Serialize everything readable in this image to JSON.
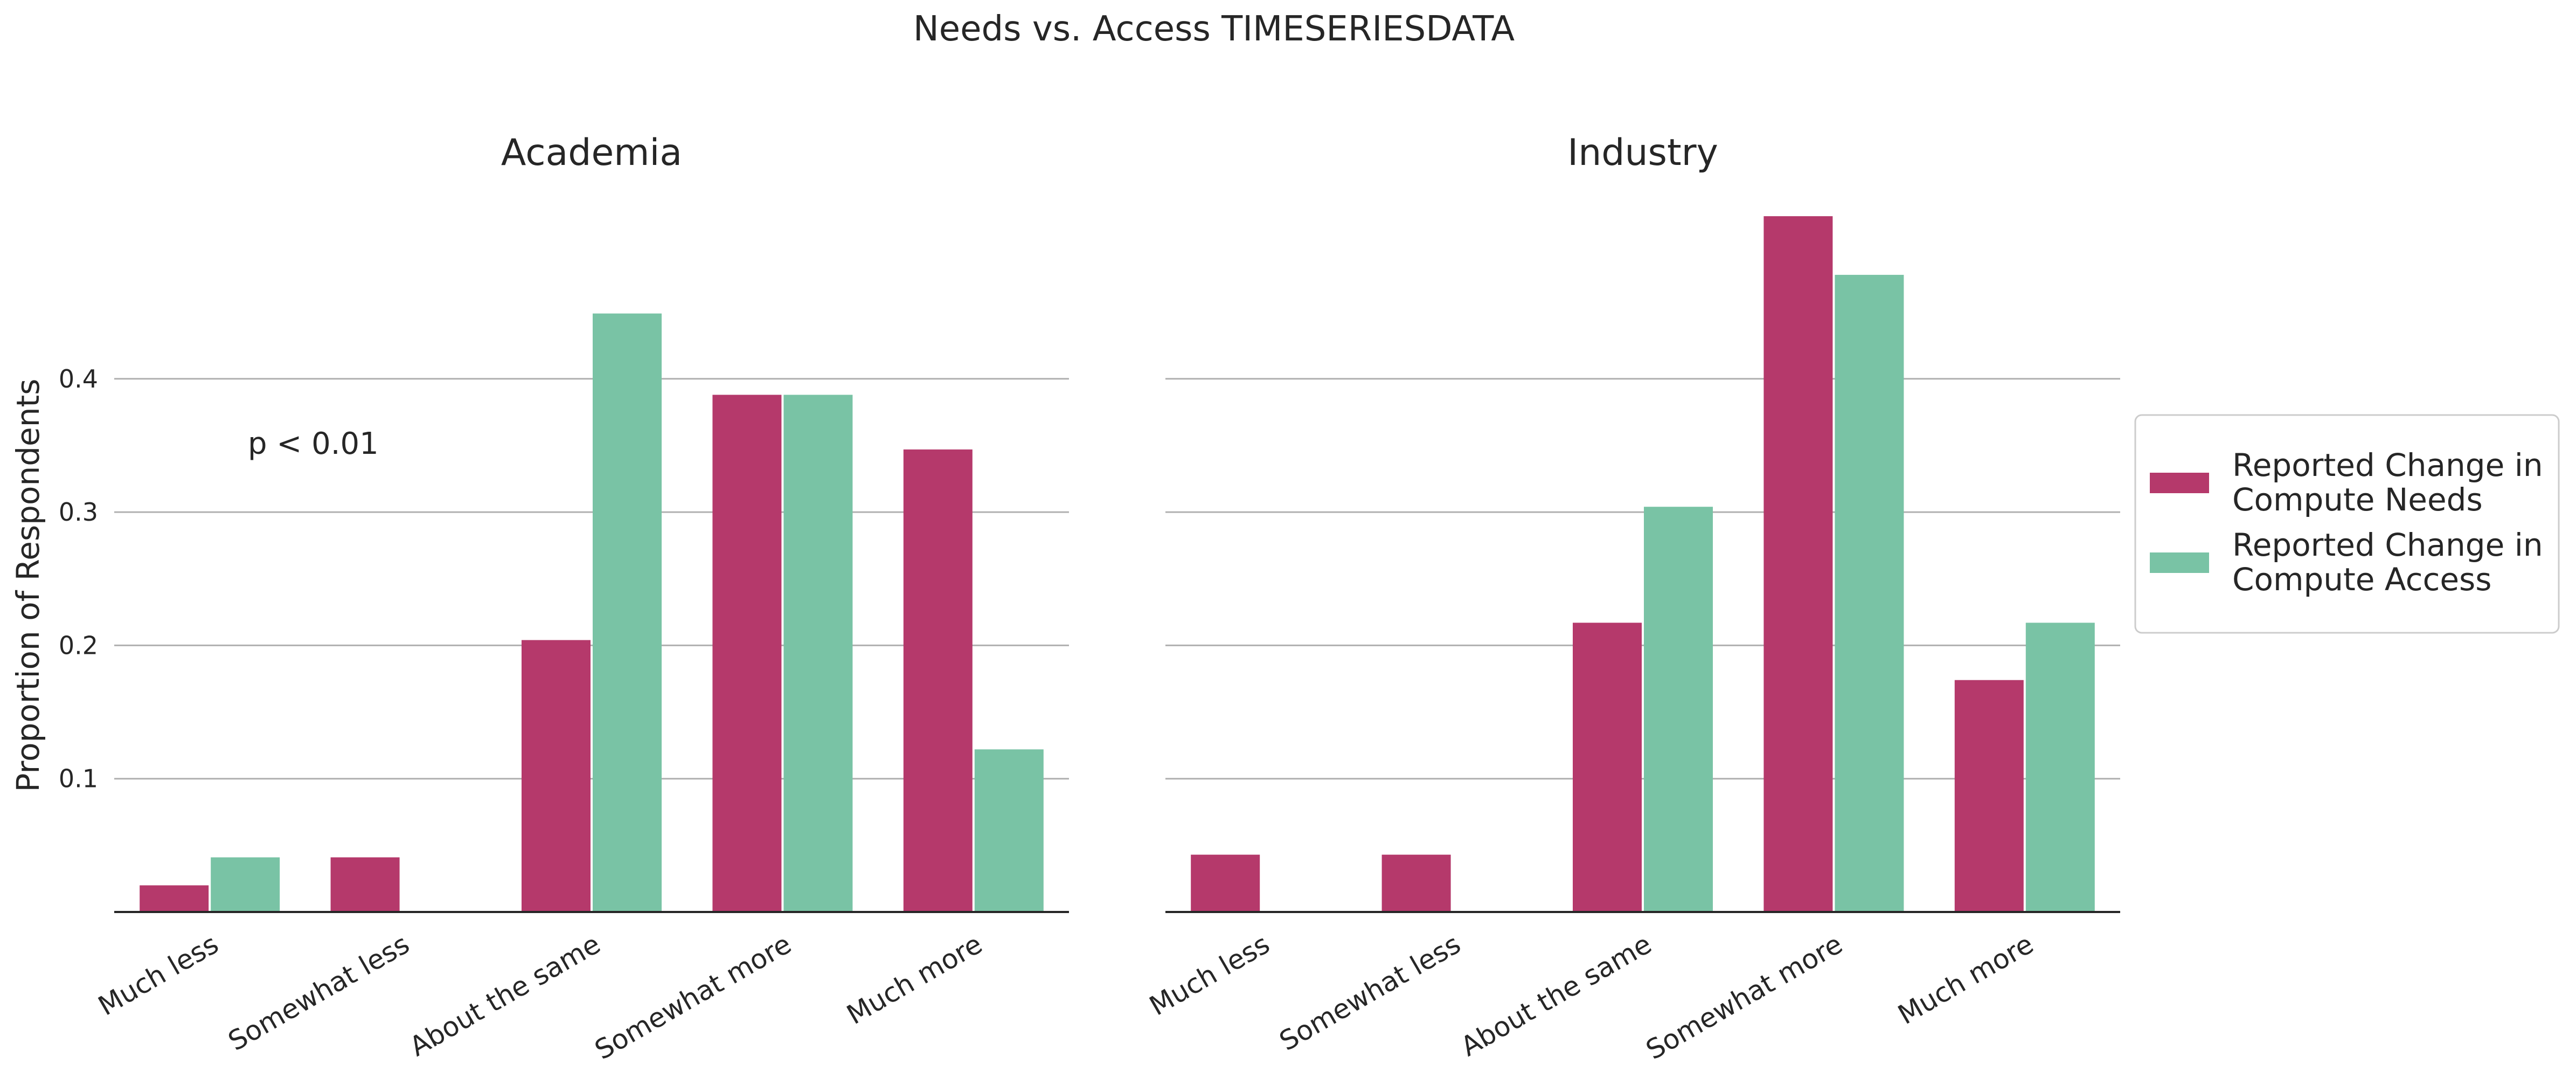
{
  "chart_data": {
    "type": "bar",
    "title": "Needs vs. Access TIMESERIESDATA",
    "ylabel": "Proportion of Respondents",
    "ylim": [
      0,
      0.52
    ],
    "yticks": [
      "0.1",
      "0.2",
      "0.3",
      "0.4"
    ],
    "yticks_values": [
      0.1,
      0.2,
      0.3,
      0.4
    ],
    "grid": "horizontal",
    "legend_position": "right",
    "categories": [
      "Much less",
      "Somewhat less",
      "About the same",
      "Somewhat more",
      "Much more"
    ],
    "legend": [
      {
        "line1": "Reported Change in",
        "line2": "Compute Needs",
        "color": "#b5396b"
      },
      {
        "line1": "Reported Change in",
        "line2": "Compute Access",
        "color": "#79c3a5"
      }
    ],
    "panels": [
      {
        "title": "Academia",
        "annotation": "p < 0.01",
        "series": [
          {
            "name": "Reported Change in Compute Needs",
            "values": [
              0.02,
              0.041,
              0.204,
              0.388,
              0.347
            ]
          },
          {
            "name": "Reported Change in Compute Access",
            "values": [
              0.041,
              0.0,
              0.449,
              0.388,
              0.122
            ]
          }
        ]
      },
      {
        "title": "Industry",
        "annotation": "",
        "series": [
          {
            "name": "Reported Change in Compute Needs",
            "values": [
              0.043,
              0.043,
              0.217,
              0.522,
              0.174
            ]
          },
          {
            "name": "Reported Change in Compute Access",
            "values": [
              0.0,
              0.0,
              0.304,
              0.478,
              0.217
            ]
          }
        ]
      }
    ]
  }
}
